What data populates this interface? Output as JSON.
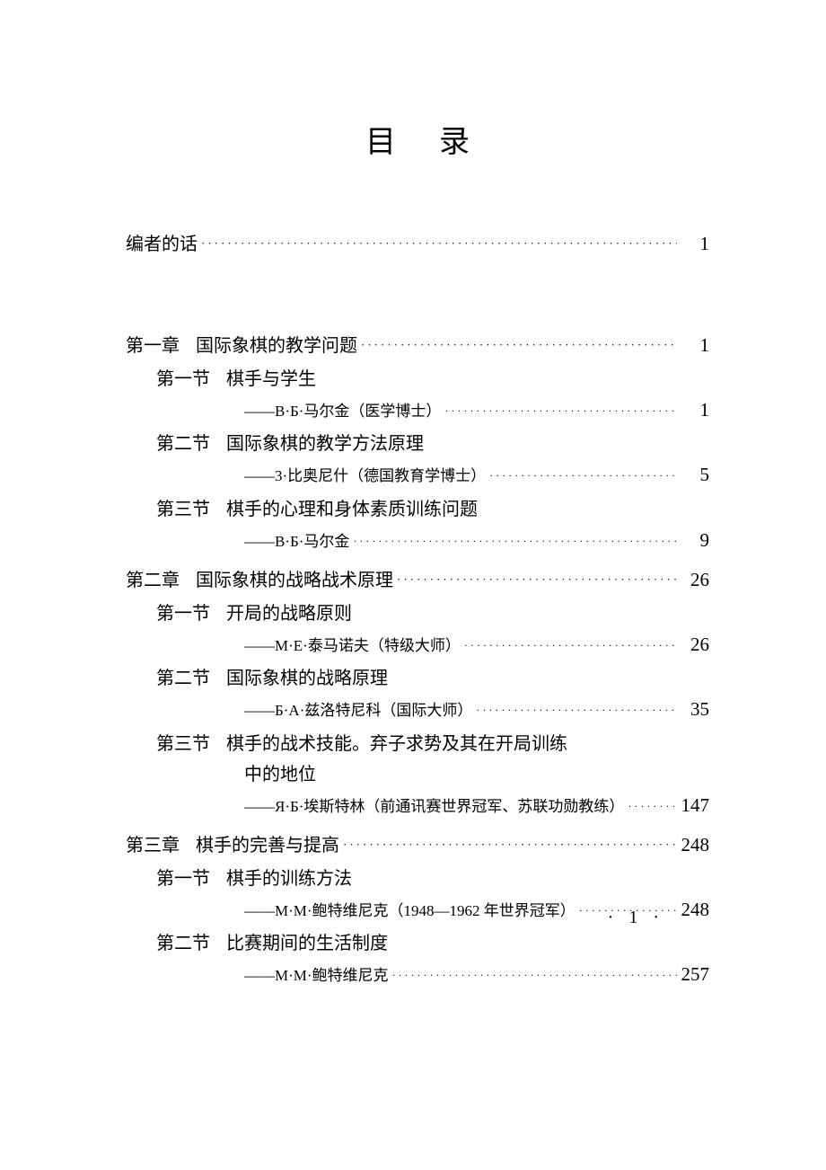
{
  "title": "目录",
  "dots_long": "······················································································",
  "preface": {
    "label": "编者的话",
    "page": "1"
  },
  "chapters": [
    {
      "label": "第一章",
      "title": "国际象棋的教学问题",
      "page": "1",
      "sections": [
        {
          "label": "第一节",
          "title": "棋手与学生",
          "author": "——B·Б·马尔金（医学博士）",
          "page": "1"
        },
        {
          "label": "第二节",
          "title": "国际象棋的教学方法原理",
          "author": "——3·比奥尼什（德国教育学博士）",
          "page": "5"
        },
        {
          "label": "第三节",
          "title": "棋手的心理和身体素质训练问题",
          "author": "——B·Б·马尔金",
          "page": "9"
        }
      ]
    },
    {
      "label": "第二章",
      "title": "国际象棋的战略战术原理",
      "page": "26",
      "sections": [
        {
          "label": "第一节",
          "title": "开局的战略原则",
          "author": "——M·E·泰马诺夫（特级大师）",
          "page": "26"
        },
        {
          "label": "第二节",
          "title": "国际象棋的战略原理",
          "author": "——Б·A·兹洛特尼科（国际大师）",
          "page": "35"
        },
        {
          "label": "第三节",
          "title": "棋手的战术技能。弃子求势及其在开局训练",
          "title_cont": "中的地位",
          "author": "——Я·Б·埃斯特林（前通讯赛世界冠军、苏联功勋教练）",
          "page": "147"
        }
      ]
    },
    {
      "label": "第三章",
      "title": "棋手的完善与提高",
      "page": "248",
      "sections": [
        {
          "label": "第一节",
          "title": "棋手的训练方法",
          "author": "——M·M·鲍特维尼克（1948—1962 年世界冠军）",
          "page": "248"
        },
        {
          "label": "第二节",
          "title": "比赛期间的生活制度",
          "author": "——M·M·鲍特维尼克",
          "page": "257"
        }
      ]
    }
  ],
  "footer_page": "· 1 ·",
  "typography": {
    "title_fontsize": 34,
    "body_fontsize": 20,
    "author_fontsize": 17,
    "pagenum_font": "Times New Roman",
    "text_color": "#000000",
    "background": "#ffffff"
  }
}
